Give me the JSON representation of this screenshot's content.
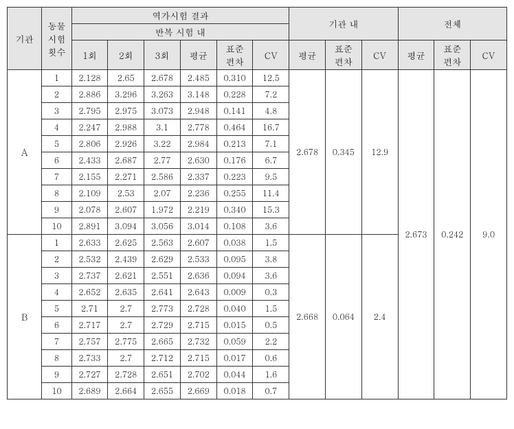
{
  "headers": {
    "inst": "기관",
    "animalTrials": "동물\n시험\n횟수",
    "potencyResults": "역가시험 결과",
    "withinRepeat": "반복 시험 내",
    "trial1": "1회",
    "trial2": "2회",
    "trial3": "3회",
    "mean": "평균",
    "sd": "표준\n편차",
    "cv": "CV",
    "withinInst": "기관 내",
    "overall": "전체"
  },
  "groups": [
    {
      "inst": "A",
      "rows": [
        {
          "n": "1",
          "v1": "2.128",
          "v2": "2.65",
          "v3": "2.678",
          "mean": "2.485",
          "sd": "0.310",
          "cv": "12.5"
        },
        {
          "n": "2",
          "v1": "2.886",
          "v2": "3.296",
          "v3": "3.263",
          "mean": "3.148",
          "sd": "0.228",
          "cv": "7.2"
        },
        {
          "n": "3",
          "v1": "2.795",
          "v2": "2.975",
          "v3": "3.073",
          "mean": "2.948",
          "sd": "0.141",
          "cv": "4.8"
        },
        {
          "n": "4",
          "v1": "2.247",
          "v2": "2.988",
          "v3": "3.1",
          "mean": "2.778",
          "sd": "0.464",
          "cv": "16.7"
        },
        {
          "n": "5",
          "v1": "2.806",
          "v2": "2.926",
          "v3": "3.22",
          "mean": "2.984",
          "sd": "0.213",
          "cv": "7.1"
        },
        {
          "n": "6",
          "v1": "2.433",
          "v2": "2.687",
          "v3": "2.77",
          "mean": "2.630",
          "sd": "0.176",
          "cv": "6.7"
        },
        {
          "n": "7",
          "v1": "2.155",
          "v2": "2.271",
          "v3": "2.586",
          "mean": "2.337",
          "sd": "0.223",
          "cv": "9.5"
        },
        {
          "n": "8",
          "v1": "2.109",
          "v2": "2.53",
          "v3": "2.07",
          "mean": "2.236",
          "sd": "0.255",
          "cv": "11.4"
        },
        {
          "n": "9",
          "v1": "2.078",
          "v2": "2.607",
          "v3": "1.972",
          "mean": "2.219",
          "sd": "0.340",
          "cv": "15.3"
        },
        {
          "n": "10",
          "v1": "2.891",
          "v2": "3.094",
          "v3": "3.056",
          "mean": "3.014",
          "sd": "0.108",
          "cv": "3.6"
        }
      ],
      "instMean": "2.678",
      "instSd": "0.345",
      "instCv": "12.9"
    },
    {
      "inst": "B",
      "rows": [
        {
          "n": "1",
          "v1": "2.633",
          "v2": "2.625",
          "v3": "2.563",
          "mean": "2.607",
          "sd": "0.038",
          "cv": "1.5"
        },
        {
          "n": "2",
          "v1": "2.532",
          "v2": "2.439",
          "v3": "2.629",
          "mean": "2.533",
          "sd": "0.095",
          "cv": "3.8"
        },
        {
          "n": "3",
          "v1": "2.737",
          "v2": "2.621",
          "v3": "2.551",
          "mean": "2.636",
          "sd": "0.094",
          "cv": "3.6"
        },
        {
          "n": "4",
          "v1": "2.652",
          "v2": "2.635",
          "v3": "2.641",
          "mean": "2.643",
          "sd": "0.009",
          "cv": "0.3"
        },
        {
          "n": "5",
          "v1": "2.71",
          "v2": "2.7",
          "v3": "2.773",
          "mean": "2.728",
          "sd": "0.040",
          "cv": "1.5"
        },
        {
          "n": "6",
          "v1": "2.717",
          "v2": "2.7",
          "v3": "2.729",
          "mean": "2.715",
          "sd": "0.015",
          "cv": "0.5"
        },
        {
          "n": "7",
          "v1": "2.757",
          "v2": "2.775",
          "v3": "2.665",
          "mean": "2.732",
          "sd": "0.059",
          "cv": "2.2"
        },
        {
          "n": "8",
          "v1": "2.733",
          "v2": "2.7",
          "v3": "2.712",
          "mean": "2.715",
          "sd": "0.017",
          "cv": "0.6"
        },
        {
          "n": "9",
          "v1": "2.727",
          "v2": "2.728",
          "v3": "2.651",
          "mean": "2.702",
          "sd": "0.044",
          "cv": "1.6"
        },
        {
          "n": "10",
          "v1": "2.689",
          "v2": "2.664",
          "v3": "2.655",
          "mean": "2.669",
          "sd": "0.018",
          "cv": "0.7"
        }
      ],
      "instMean": "2.668",
      "instSd": "0.064",
      "instCv": "2.4"
    }
  ],
  "overall": {
    "mean": "2.673",
    "sd": "0.242",
    "cv": "9.0"
  }
}
